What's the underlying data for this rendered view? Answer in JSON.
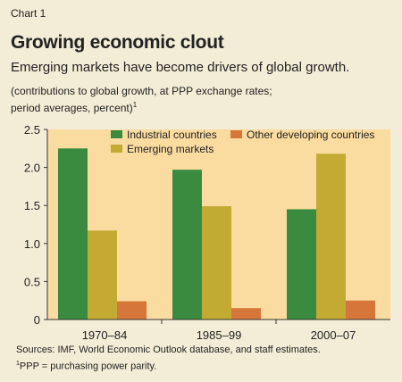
{
  "chart_label": "Chart 1",
  "title": "Growing economic clout",
  "subtitle": "Emerging markets have become drivers of global growth.",
  "note_line1": "(contributions to global growth, at PPP exchange rates;",
  "note_line2": "period averages, percent)",
  "note_marker": "1",
  "sources": "Sources: IMF, World Economic Outlook database, and staff estimates.",
  "footnote_marker": "1",
  "footnote": "PPP = purchasing power parity.",
  "colors": {
    "background": "#f3ecd6",
    "plot_background": "#fbdca0",
    "industrial": "#3a8a3f",
    "emerging": "#c2aa33",
    "other": "#d6763a"
  },
  "chart_data": {
    "type": "bar",
    "categories": [
      "1970–84",
      "1985–99",
      "2000–07"
    ],
    "series": [
      {
        "name": "Industrial countries",
        "values": [
          2.25,
          1.97,
          1.45
        ],
        "color": "#3a8a3f"
      },
      {
        "name": "Emerging markets",
        "values": [
          1.17,
          1.49,
          2.18
        ],
        "color": "#c2aa33"
      },
      {
        "name": "Other developing countries",
        "values": [
          0.24,
          0.15,
          0.25
        ],
        "color": "#d6763a"
      }
    ],
    "yticks": [
      "0",
      "0.5",
      "1.0",
      "1.5",
      "2.0",
      "2.5"
    ],
    "ylim": [
      0,
      2.5
    ],
    "legend_placement": "top",
    "grid": false
  }
}
